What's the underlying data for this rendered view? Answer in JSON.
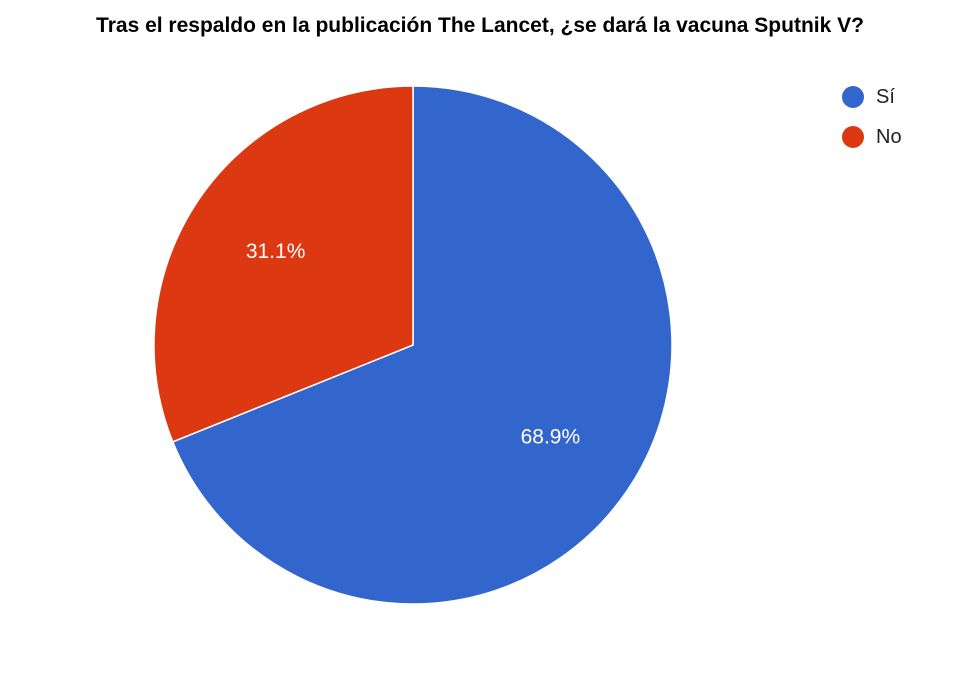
{
  "chart_data": {
    "type": "pie",
    "title": "Tras el respaldo en la publicación The Lancet, ¿se dará la vacuna Sputnik V?",
    "categories": [
      "Sí",
      "No"
    ],
    "values": [
      68.9,
      31.1
    ],
    "value_labels": [
      "68.9%",
      "31.1%"
    ],
    "colors": [
      "#3366cc",
      "#dc3912"
    ],
    "legend_position": "top-right",
    "start_angle": "12 o'clock, clockwise"
  }
}
